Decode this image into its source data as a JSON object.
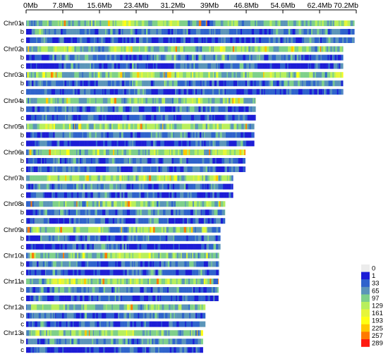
{
  "chart_data": {
    "type": "heatmap",
    "title": "",
    "xlabel": "",
    "ylabel": "",
    "x_unit": "Mb",
    "xlim": [
      0,
      70.2
    ],
    "x_ticks": [
      {
        "value": 0,
        "label": "0Mb"
      },
      {
        "value": 7.8,
        "label": "7.8Mb"
      },
      {
        "value": 15.6,
        "label": "15.6Mb"
      },
      {
        "value": 23.4,
        "label": "23.4Mb"
      },
      {
        "value": 31.2,
        "label": "31.2Mb"
      },
      {
        "value": 39.0,
        "label": "39Mb"
      },
      {
        "value": 46.8,
        "label": "46.8Mb"
      },
      {
        "value": 54.6,
        "label": "54.6Mb"
      },
      {
        "value": 62.4,
        "label": "62.4Mb"
      },
      {
        "value": 70.2,
        "label": "70.2Mb"
      }
    ],
    "track_labels": [
      "a",
      "b",
      "c"
    ],
    "chromosomes": [
      {
        "name": "Chr01",
        "length_mb": 69.8
      },
      {
        "name": "Chr02",
        "length_mb": 67.4
      },
      {
        "name": "Chr03",
        "length_mb": 67.4
      },
      {
        "name": "Chr04",
        "length_mb": 48.8
      },
      {
        "name": "Chr05",
        "length_mb": 48.5
      },
      {
        "name": "Chr06",
        "length_mb": 46.6
      },
      {
        "name": "Chr07",
        "length_mb": 44.0
      },
      {
        "name": "Chr08",
        "length_mb": 42.3
      },
      {
        "name": "Chr09",
        "length_mb": 41.3
      },
      {
        "name": "Chr10",
        "length_mb": 41.0
      },
      {
        "name": "Chr11",
        "length_mb": 40.9
      },
      {
        "name": "Chr12",
        "length_mb": 38.1
      },
      {
        "name": "Chr13",
        "length_mb": 37.6
      }
    ],
    "legend": {
      "placement": "bottom-right",
      "bins": [
        {
          "label": "0",
          "color": "#ececec"
        },
        {
          "label": "1",
          "color": "#1c1cd6"
        },
        {
          "label": "33",
          "color": "#2f63cc"
        },
        {
          "label": "65",
          "color": "#5b95b9"
        },
        {
          "label": "97",
          "color": "#7fd08a"
        },
        {
          "label": "129",
          "color": "#b8ef5c"
        },
        {
          "label": "161",
          "color": "#e6f53a"
        },
        {
          "label": "193",
          "color": "#ffff14"
        },
        {
          "label": "225",
          "color": "#ffc800"
        },
        {
          "label": "257",
          "color": "#ff7a00"
        },
        {
          "label": "289",
          "color": "#ff1a10"
        }
      ]
    }
  }
}
